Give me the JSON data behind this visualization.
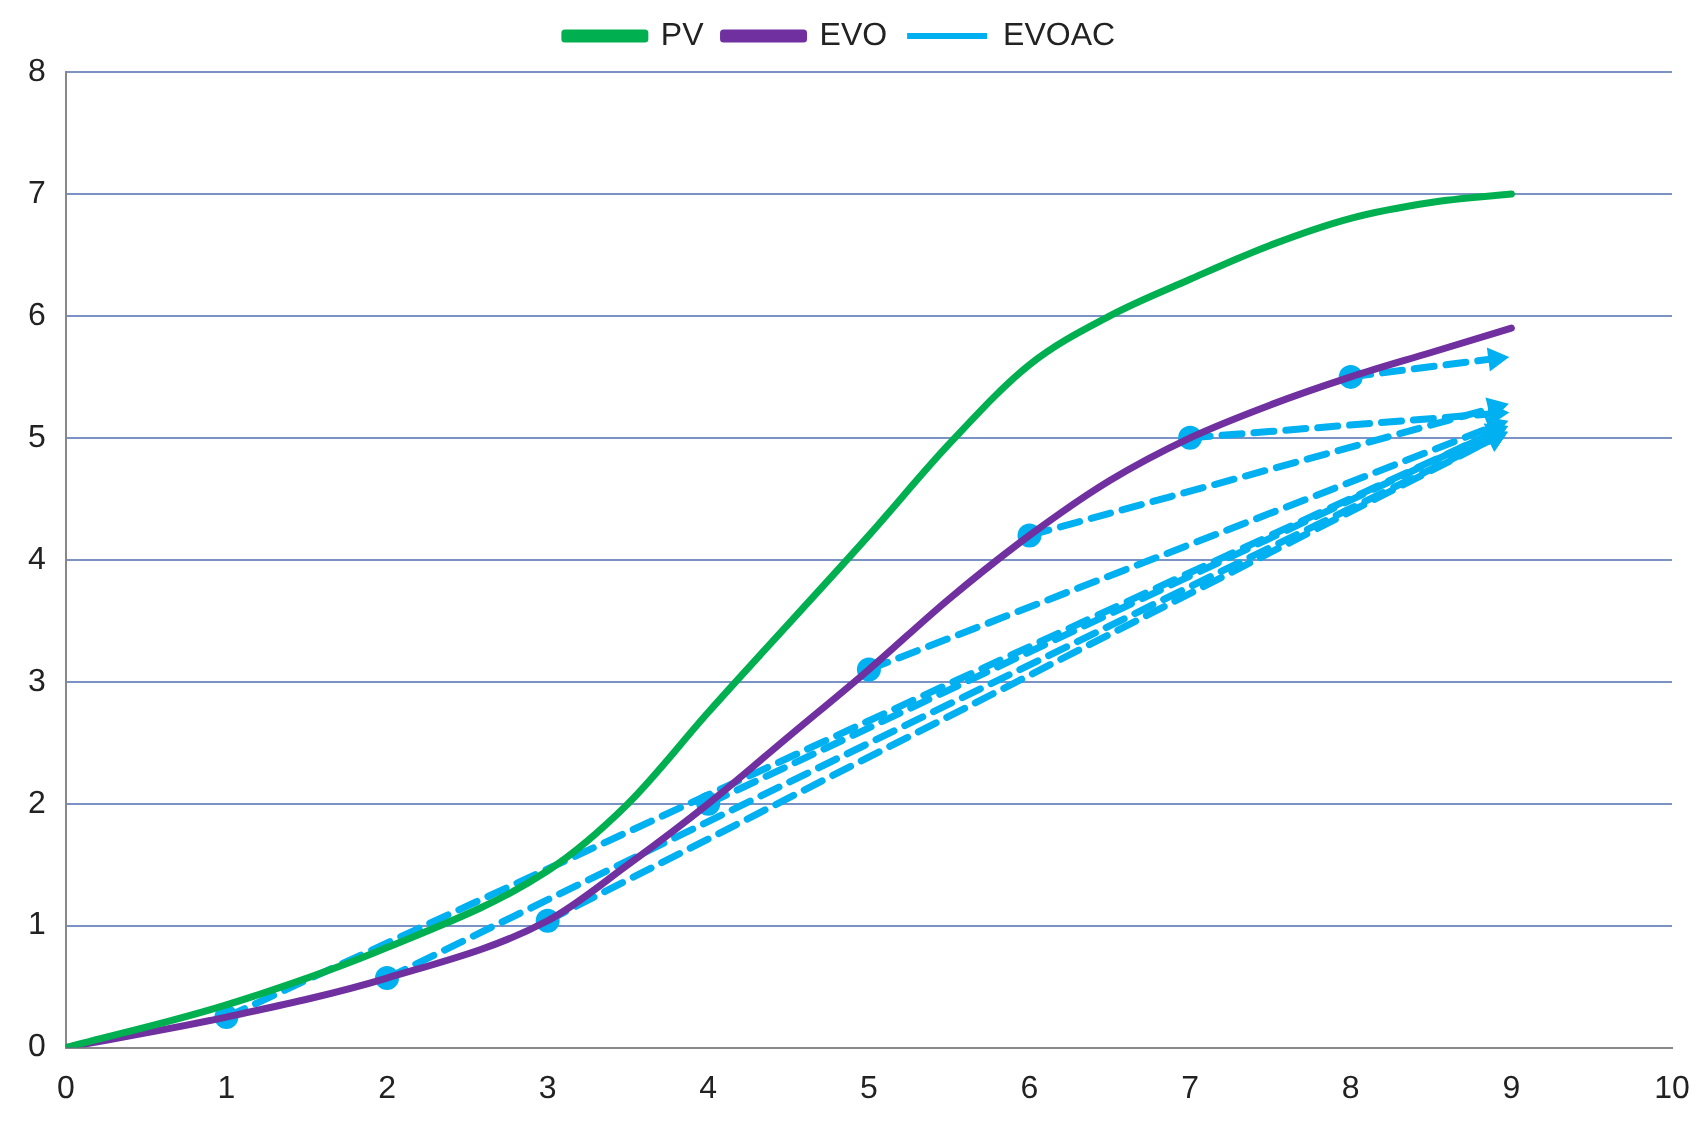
{
  "chart_data": {
    "type": "line",
    "xlim": [
      0,
      10
    ],
    "xticks": [
      0,
      1,
      2,
      3,
      4,
      5,
      6,
      7,
      8,
      9,
      10
    ],
    "ylim": [
      0,
      8
    ],
    "yticks": [
      0,
      1,
      2,
      3,
      4,
      5,
      6,
      7,
      8
    ],
    "grid": "y",
    "legend": "top",
    "series": [
      {
        "name": "PV",
        "color": "#00b050",
        "marker": "none",
        "line_style": "solid",
        "x": [
          0,
          1,
          2,
          3,
          3.5,
          4,
          5,
          5.5,
          6,
          6.5,
          7,
          7.5,
          8,
          8.5,
          9
        ],
        "values": [
          0,
          0.35,
          0.82,
          1.45,
          2.0,
          2.75,
          4.2,
          4.95,
          5.6,
          6.0,
          6.3,
          6.58,
          6.8,
          6.93,
          7.0
        ]
      },
      {
        "name": "EVO",
        "color": "#7030a0",
        "marker": "none",
        "line_style": "solid",
        "x": [
          0,
          1,
          2,
          3,
          3.5,
          4,
          4.5,
          5,
          5.5,
          6,
          6.5,
          7,
          7.5,
          8,
          8.5,
          9
        ],
        "values": [
          0,
          0.25,
          0.57,
          1.04,
          1.5,
          2.0,
          2.55,
          3.1,
          3.68,
          4.2,
          4.65,
          5.0,
          5.27,
          5.5,
          5.7,
          5.9
        ]
      },
      {
        "name": "EVOAC",
        "type": "scatter",
        "color": "#00b0f0",
        "marker": "circle",
        "x": [
          1,
          2,
          3,
          4,
          5,
          6,
          7,
          8
        ],
        "values": [
          0.25,
          0.57,
          1.04,
          2.0,
          3.1,
          4.2,
          5.0,
          5.5
        ]
      },
      {
        "color": "#00b0f0",
        "line_style": "dashed",
        "x": [
          1,
          8.9
        ],
        "values": [
          0.25,
          5.05
        ]
      },
      {
        "color": "#00b0f0",
        "line_style": "dashed",
        "x": [
          2,
          8.9
        ],
        "values": [
          0.57,
          5.0
        ]
      },
      {
        "color": "#00b0f0",
        "line_style": "dashed",
        "x": [
          3,
          8.9
        ],
        "values": [
          1.04,
          5.0
        ]
      },
      {
        "color": "#00b0f0",
        "line_style": "dashed",
        "x": [
          4,
          8.9
        ],
        "values": [
          2.0,
          5.05
        ]
      },
      {
        "color": "#00b0f0",
        "line_style": "dashed",
        "x": [
          5,
          8.9
        ],
        "values": [
          3.1,
          5.1
        ]
      },
      {
        "color": "#00b0f0",
        "line_style": "dashed",
        "x": [
          6,
          8.9
        ],
        "values": [
          4.2,
          5.25
        ]
      },
      {
        "color": "#00b0f0",
        "line_style": "dashed",
        "x": [
          7,
          8.9
        ],
        "values": [
          5.0,
          5.2
        ]
      },
      {
        "color": "#00b0f0",
        "line_style": "dashed",
        "x": [
          8,
          8.9
        ],
        "values": [
          5.5,
          5.65
        ]
      }
    ]
  }
}
